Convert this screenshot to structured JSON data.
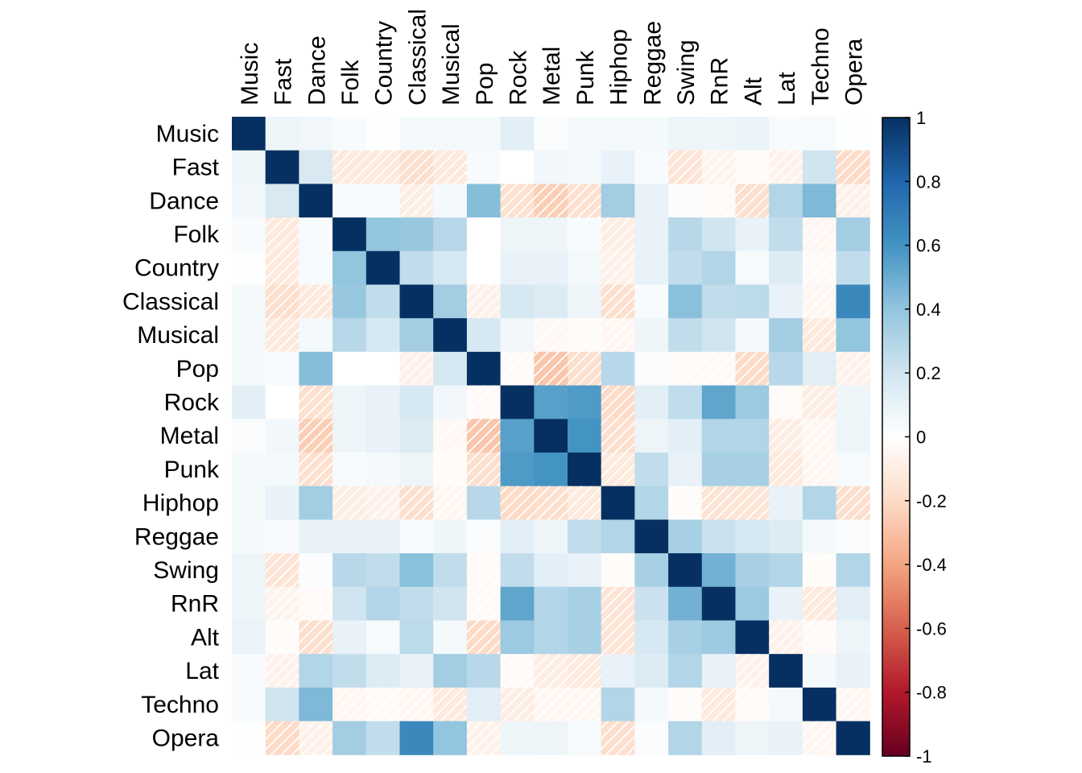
{
  "chart_data": {
    "type": "heatmap",
    "title": "",
    "variables": [
      "Music",
      "Fast",
      "Dance",
      "Folk",
      "Country",
      "Classical",
      "Musical",
      "Pop",
      "Rock",
      "Metal",
      "Punk",
      "Hiphop",
      "Reggae",
      "Swing",
      "RnR",
      "Alt",
      "Lat",
      "Techno",
      "Opera"
    ],
    "values": [
      [
        1.0,
        0.08,
        0.06,
        0.03,
        0.01,
        0.05,
        0.05,
        0.05,
        0.12,
        0.02,
        0.05,
        0.05,
        0.05,
        0.08,
        0.07,
        0.09,
        0.03,
        0.04,
        0.01
      ],
      [
        0.08,
        1.0,
        0.17,
        -0.12,
        -0.12,
        -0.18,
        -0.12,
        0.03,
        0.0,
        0.06,
        0.05,
        0.1,
        0.03,
        -0.15,
        -0.06,
        -0.02,
        -0.07,
        0.2,
        -0.2
      ],
      [
        0.06,
        0.17,
        1.0,
        0.03,
        0.03,
        -0.1,
        0.05,
        0.43,
        -0.17,
        -0.25,
        -0.17,
        0.35,
        0.1,
        0.02,
        -0.03,
        -0.18,
        0.3,
        0.45,
        -0.08
      ],
      [
        0.03,
        -0.12,
        0.03,
        1.0,
        0.4,
        0.38,
        0.28,
        0.0,
        0.08,
        0.08,
        0.03,
        -0.1,
        0.1,
        0.28,
        0.2,
        0.1,
        0.25,
        -0.05,
        0.35
      ],
      [
        0.01,
        -0.12,
        0.03,
        0.4,
        1.0,
        0.25,
        0.18,
        0.0,
        0.1,
        0.1,
        0.05,
        -0.08,
        0.1,
        0.25,
        0.3,
        0.04,
        0.15,
        -0.03,
        0.25
      ],
      [
        0.05,
        -0.18,
        -0.12,
        0.38,
        0.25,
        1.0,
        0.35,
        -0.08,
        0.18,
        0.15,
        0.08,
        -0.18,
        0.03,
        0.42,
        0.25,
        0.27,
        0.1,
        -0.05,
        0.65
      ],
      [
        0.05,
        -0.12,
        0.05,
        0.28,
        0.18,
        0.35,
        1.0,
        0.18,
        0.06,
        -0.04,
        -0.02,
        -0.05,
        0.07,
        0.25,
        0.2,
        0.05,
        0.35,
        -0.12,
        0.4
      ],
      [
        0.05,
        0.03,
        0.43,
        0.0,
        0.0,
        -0.08,
        0.18,
        1.0,
        -0.03,
        -0.28,
        -0.18,
        0.28,
        0.02,
        -0.03,
        -0.03,
        -0.2,
        0.28,
        0.13,
        -0.07
      ],
      [
        0.12,
        0.0,
        -0.17,
        0.08,
        0.1,
        0.18,
        0.06,
        -0.03,
        1.0,
        0.55,
        0.57,
        -0.2,
        0.12,
        0.25,
        0.53,
        0.37,
        -0.03,
        -0.1,
        0.07
      ],
      [
        0.02,
        0.06,
        -0.25,
        0.08,
        0.1,
        0.15,
        -0.04,
        -0.28,
        0.55,
        1.0,
        0.6,
        -0.18,
        0.08,
        0.12,
        0.3,
        0.3,
        -0.1,
        -0.05,
        0.08
      ],
      [
        0.05,
        0.05,
        -0.17,
        0.03,
        0.05,
        0.08,
        -0.02,
        -0.18,
        0.57,
        0.6,
        1.0,
        -0.12,
        0.25,
        0.1,
        0.33,
        0.33,
        -0.12,
        -0.05,
        0.04
      ],
      [
        0.05,
        0.1,
        0.35,
        -0.1,
        -0.08,
        -0.18,
        -0.05,
        0.28,
        -0.2,
        -0.18,
        -0.12,
        1.0,
        0.3,
        -0.02,
        -0.15,
        -0.15,
        0.1,
        0.3,
        -0.18
      ],
      [
        0.05,
        0.03,
        0.1,
        0.1,
        0.1,
        0.03,
        0.07,
        0.02,
        0.12,
        0.08,
        0.25,
        0.3,
        1.0,
        0.33,
        0.22,
        0.18,
        0.15,
        0.05,
        0.02
      ],
      [
        0.08,
        -0.15,
        0.02,
        0.28,
        0.25,
        0.42,
        0.25,
        -0.03,
        0.25,
        0.12,
        0.1,
        -0.02,
        0.33,
        1.0,
        0.48,
        0.33,
        0.3,
        -0.02,
        0.3
      ],
      [
        0.07,
        -0.06,
        -0.03,
        0.2,
        0.3,
        0.25,
        0.2,
        -0.03,
        0.53,
        0.3,
        0.33,
        -0.15,
        0.22,
        0.48,
        1.0,
        0.37,
        0.1,
        -0.12,
        0.12
      ],
      [
        0.09,
        -0.02,
        -0.18,
        0.1,
        0.04,
        0.27,
        0.05,
        -0.2,
        0.37,
        0.3,
        0.33,
        -0.15,
        0.18,
        0.33,
        0.37,
        1.0,
        -0.07,
        -0.03,
        0.08
      ],
      [
        0.03,
        -0.07,
        0.3,
        0.25,
        0.15,
        0.1,
        0.35,
        0.28,
        -0.03,
        -0.1,
        -0.12,
        0.1,
        0.15,
        0.3,
        0.1,
        -0.07,
        1.0,
        0.05,
        0.1
      ],
      [
        0.04,
        0.2,
        0.45,
        -0.05,
        -0.03,
        -0.05,
        -0.12,
        0.13,
        -0.1,
        -0.05,
        -0.05,
        0.3,
        0.05,
        -0.02,
        -0.12,
        -0.03,
        0.05,
        1.0,
        -0.05
      ],
      [
        0.01,
        -0.2,
        -0.08,
        0.35,
        0.25,
        0.65,
        0.4,
        -0.07,
        0.07,
        0.08,
        0.04,
        -0.18,
        0.02,
        0.3,
        0.12,
        0.08,
        0.1,
        -0.05,
        1.0
      ]
    ],
    "colorbar": {
      "ticks": [
        "1",
        "0.8",
        "0.6",
        "0.4",
        "0.2",
        "0",
        "-0.2",
        "-0.4",
        "-0.6",
        "-0.8",
        "-1"
      ],
      "range": [
        -1,
        1
      ],
      "colors": [
        "#67001F",
        "#B2182B",
        "#D6604D",
        "#F4A582",
        "#FDDBC7",
        "#FFFFFF",
        "#D1E5F0",
        "#92C5DE",
        "#4393C3",
        "#2166AC",
        "#053061"
      ]
    },
    "negative_hatch": true
  }
}
